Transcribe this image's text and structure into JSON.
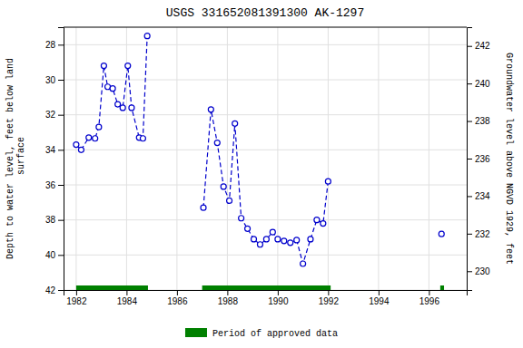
{
  "chart_data": {
    "type": "line",
    "title": "USGS 331652081391300 AK-1297",
    "ylabel": "Depth to water level, feet below land\n surface",
    "y2label": "Groundwater level above NGVD 1929, feet",
    "xlim": [
      1981.5,
      1997.5
    ],
    "xticks": [
      1982,
      1984,
      1986,
      1988,
      1990,
      1992,
      1994,
      1996
    ],
    "ylim": [
      42,
      27
    ],
    "yticks": [
      28,
      30,
      32,
      34,
      36,
      38,
      40,
      42
    ],
    "y2lim": [
      229,
      243
    ],
    "y2ticks": [
      242,
      240,
      238,
      236,
      234,
      232,
      230
    ],
    "grid": true,
    "legend": "bottom",
    "series": [
      {
        "color": "#0000CC",
        "marker": "circle",
        "line_style": "dashed",
        "x": [
          1982.0,
          1982.2,
          1982.5,
          1982.75,
          1982.9,
          1983.1,
          1983.25,
          1983.45,
          1983.65,
          1983.85,
          1984.05,
          1984.2,
          1984.5,
          1984.65,
          1984.82,
          null,
          1987.05,
          1987.35,
          1987.6,
          1987.85,
          1988.08,
          1988.3,
          1988.55,
          1988.8,
          1989.05,
          1989.3,
          1989.55,
          1989.8,
          1990.0,
          1990.25,
          1990.5,
          1990.75,
          1991.0,
          1991.3,
          1991.55,
          1991.8,
          1992.0,
          null,
          1996.5
        ],
        "values": [
          33.7,
          34.0,
          33.3,
          33.35,
          32.7,
          29.2,
          30.4,
          30.5,
          31.4,
          31.6,
          29.2,
          31.6,
          33.3,
          33.35,
          27.5,
          null,
          37.3,
          31.7,
          33.6,
          36.1,
          36.9,
          32.5,
          37.9,
          38.5,
          39.1,
          39.4,
          39.1,
          38.7,
          39.1,
          39.2,
          39.3,
          39.15,
          40.5,
          39.1,
          38.0,
          38.2,
          35.8,
          null,
          38.8
        ]
      },
      {
        "name": "Period of approved data",
        "type": "range",
        "color": "#008000",
        "x_start": [
          1982.0,
          1987.0,
          1996.45
        ],
        "x_end": [
          1984.85,
          1992.1,
          1996.6
        ]
      }
    ]
  }
}
